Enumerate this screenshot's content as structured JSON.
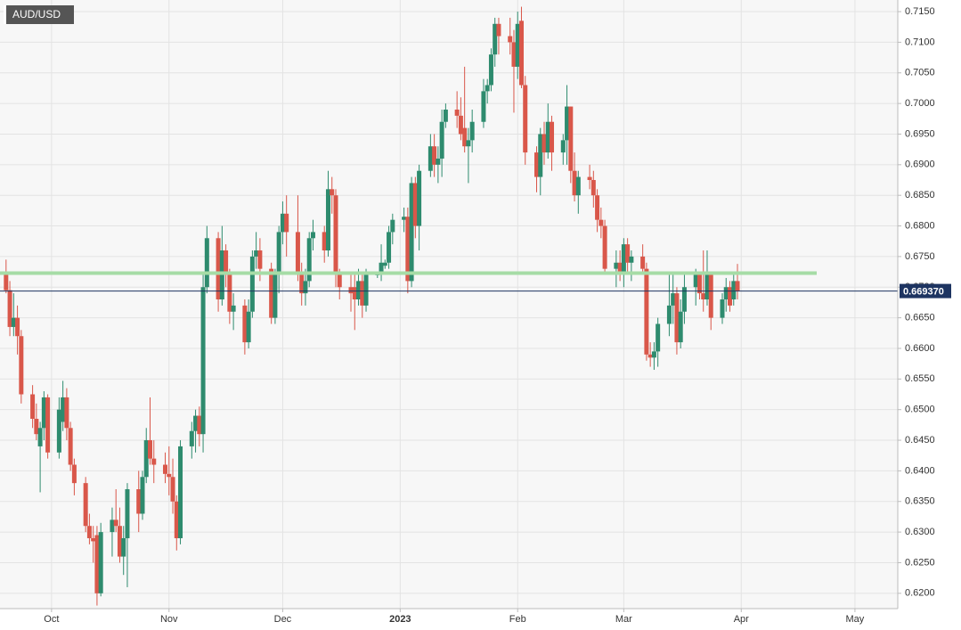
{
  "chart_data": {
    "type": "candlestick",
    "title": "AUD/USD",
    "up_color": "#2e8b6e",
    "down_color": "#d9574a",
    "grid": true,
    "ylim": [
      0.6175,
      0.7169
    ],
    "yticks": [
      {
        "value": 0.62,
        "label": "0.6200"
      },
      {
        "value": 0.625,
        "label": "0.6250"
      },
      {
        "value": 0.63,
        "label": "0.6300"
      },
      {
        "value": 0.635,
        "label": "0.6350"
      },
      {
        "value": 0.64,
        "label": "0.6400"
      },
      {
        "value": 0.645,
        "label": "0.6450"
      },
      {
        "value": 0.65,
        "label": "0.6500"
      },
      {
        "value": 0.655,
        "label": "0.6550"
      },
      {
        "value": 0.66,
        "label": "0.6600"
      },
      {
        "value": 0.665,
        "label": "0.6650"
      },
      {
        "value": 0.67,
        "label": "0.6700"
      },
      {
        "value": 0.675,
        "label": "0.6750"
      },
      {
        "value": 0.68,
        "label": "0.6800"
      },
      {
        "value": 0.685,
        "label": "0.6850"
      },
      {
        "value": 0.69,
        "label": "0.6900"
      },
      {
        "value": 0.695,
        "label": "0.6950"
      },
      {
        "value": 0.7,
        "label": "0.7000"
      },
      {
        "value": 0.705,
        "label": "0.7050"
      },
      {
        "value": 0.71,
        "label": "0.7100"
      },
      {
        "value": 0.715,
        "label": "0.7150"
      }
    ],
    "xlim": [
      -13.6,
      223.3
    ],
    "xticks": [
      {
        "value": 0,
        "label": "Oct"
      },
      {
        "value": 31,
        "label": "Nov"
      },
      {
        "value": 61,
        "label": "Dec"
      },
      {
        "value": 92,
        "label": "2023"
      },
      {
        "value": 123,
        "label": "Feb"
      },
      {
        "value": 151,
        "label": "Mar"
      },
      {
        "value": 182,
        "label": "Apr"
      },
      {
        "value": 212,
        "label": "May"
      }
    ],
    "hlines": [
      {
        "value": 0.6723,
        "color": "#a6dca6"
      }
    ],
    "current_price": {
      "value": 0.66937,
      "label": "0.669370",
      "color": "#1d3461"
    },
    "x": [
      -12,
      -11,
      -10,
      -9,
      -8,
      -5,
      -4,
      -3,
      -2,
      -1,
      2,
      3,
      4,
      5,
      6,
      9,
      10,
      11,
      12,
      13,
      16,
      17,
      18,
      19,
      20,
      23,
      24,
      25,
      26,
      27,
      30,
      31,
      32,
      33,
      34,
      37,
      38,
      39,
      40,
      41,
      44,
      45,
      46,
      47,
      48,
      51,
      52,
      53,
      54,
      55,
      58,
      59,
      60,
      61,
      62,
      65,
      66,
      67,
      68,
      69,
      72,
      73,
      74,
      75,
      76,
      79,
      80,
      81,
      82,
      83,
      86,
      87,
      88,
      89,
      90,
      93,
      94,
      95,
      96,
      97,
      100,
      101,
      102,
      103,
      104,
      107,
      108,
      109,
      110,
      111,
      114,
      115,
      116,
      117,
      118,
      121,
      122,
      123,
      124,
      125,
      128,
      129,
      130,
      131,
      132,
      135,
      136,
      137,
      138,
      139,
      142,
      143,
      144,
      145,
      146,
      149,
      150,
      151,
      152,
      153,
      156,
      157,
      158,
      159,
      160,
      163,
      164,
      165,
      166,
      167,
      170,
      171,
      172,
      173,
      174,
      177,
      178,
      179,
      180,
      181
    ],
    "ohlc": [
      [
        0.672,
        0.6745,
        0.669,
        0.6695
      ],
      [
        0.6695,
        0.671,
        0.662,
        0.6635
      ],
      [
        0.6635,
        0.669,
        0.662,
        0.665
      ],
      [
        0.665,
        0.667,
        0.659,
        0.662
      ],
      [
        0.662,
        0.663,
        0.651,
        0.6525
      ],
      [
        0.6525,
        0.654,
        0.647,
        0.6485
      ],
      [
        0.6485,
        0.651,
        0.645,
        0.646
      ],
      [
        0.644,
        0.648,
        0.6365,
        0.647
      ],
      [
        0.647,
        0.653,
        0.645,
        0.652
      ],
      [
        0.652,
        0.6525,
        0.642,
        0.643
      ],
      [
        0.643,
        0.652,
        0.642,
        0.65
      ],
      [
        0.648,
        0.6547,
        0.6465,
        0.652
      ],
      [
        0.652,
        0.6535,
        0.645,
        0.647
      ],
      [
        0.647,
        0.648,
        0.64,
        0.641
      ],
      [
        0.641,
        0.642,
        0.636,
        0.638
      ],
      [
        0.638,
        0.639,
        0.63,
        0.631
      ],
      [
        0.631,
        0.633,
        0.628,
        0.629
      ],
      [
        0.629,
        0.631,
        0.625,
        0.6285
      ],
      [
        0.6295,
        0.631,
        0.618,
        0.62
      ],
      [
        0.62,
        0.6315,
        0.6195,
        0.63
      ],
      [
        0.63,
        0.634,
        0.626,
        0.632
      ],
      [
        0.632,
        0.637,
        0.63,
        0.631
      ],
      [
        0.631,
        0.634,
        0.625,
        0.626
      ],
      [
        0.626,
        0.631,
        0.623,
        0.629
      ],
      [
        0.629,
        0.638,
        0.621,
        0.637
      ],
      [
        0.637,
        0.64,
        0.63,
        0.633
      ],
      [
        0.633,
        0.64,
        0.632,
        0.639
      ],
      [
        0.639,
        0.647,
        0.638,
        0.645
      ],
      [
        0.645,
        0.652,
        0.641,
        0.642
      ],
      [
        0.642,
        0.645,
        0.638,
        0.641
      ],
      [
        0.641,
        0.643,
        0.638,
        0.6395
      ],
      [
        0.6395,
        0.644,
        0.636,
        0.639
      ],
      [
        0.639,
        0.642,
        0.633,
        0.635
      ],
      [
        0.635,
        0.636,
        0.627,
        0.629
      ],
      [
        0.629,
        0.645,
        0.628,
        0.644
      ],
      [
        0.644,
        0.648,
        0.642,
        0.6465
      ],
      [
        0.6465,
        0.65,
        0.643,
        0.649
      ],
      [
        0.649,
        0.6505,
        0.644,
        0.646
      ],
      [
        0.646,
        0.672,
        0.643,
        0.67
      ],
      [
        0.67,
        0.68,
        0.669,
        0.678
      ],
      [
        0.678,
        0.679,
        0.666,
        0.668
      ],
      [
        0.668,
        0.68,
        0.667,
        0.676
      ],
      [
        0.676,
        0.677,
        0.67,
        0.672
      ],
      [
        0.672,
        0.673,
        0.664,
        0.666
      ],
      [
        0.666,
        0.669,
        0.663,
        0.667
      ],
      [
        0.667,
        0.668,
        0.659,
        0.661
      ],
      [
        0.661,
        0.668,
        0.66,
        0.666
      ],
      [
        0.666,
        0.676,
        0.665,
        0.675
      ],
      [
        0.675,
        0.679,
        0.673,
        0.676
      ],
      [
        0.676,
        0.678,
        0.671,
        0.673
      ],
      [
        0.673,
        0.674,
        0.664,
        0.665
      ],
      [
        0.665,
        0.673,
        0.664,
        0.672
      ],
      [
        0.672,
        0.68,
        0.669,
        0.679
      ],
      [
        0.679,
        0.684,
        0.677,
        0.682
      ],
      [
        0.682,
        0.685,
        0.675,
        0.679
      ],
      [
        0.679,
        0.685,
        0.671,
        0.672
      ],
      [
        0.672,
        0.674,
        0.667,
        0.669
      ],
      [
        0.669,
        0.673,
        0.667,
        0.671
      ],
      [
        0.671,
        0.679,
        0.67,
        0.678
      ],
      [
        0.678,
        0.681,
        0.676,
        0.679
      ],
      [
        0.679,
        0.68,
        0.674,
        0.676
      ],
      [
        0.676,
        0.689,
        0.675,
        0.686
      ],
      [
        0.686,
        0.688,
        0.682,
        0.685
      ],
      [
        0.685,
        0.686,
        0.67,
        0.672
      ],
      [
        0.672,
        0.673,
        0.668,
        0.67
      ],
      [
        0.67,
        0.672,
        0.666,
        0.669
      ],
      [
        0.67,
        0.672,
        0.663,
        0.668
      ],
      [
        0.668,
        0.673,
        0.667,
        0.671
      ],
      [
        0.671,
        0.672,
        0.665,
        0.667
      ],
      [
        0.667,
        0.673,
        0.666,
        0.672
      ],
      [
        0.672,
        0.6725,
        0.6715,
        0.6721
      ],
      [
        0.6721,
        0.677,
        0.671,
        0.674
      ],
      [
        0.6735,
        0.6745,
        0.673,
        0.674
      ],
      [
        0.674,
        0.68,
        0.673,
        0.679
      ],
      [
        0.679,
        0.682,
        0.677,
        0.681
      ],
      [
        0.681,
        0.683,
        0.679,
        0.6815
      ],
      [
        0.6815,
        0.683,
        0.669,
        0.671
      ],
      [
        0.671,
        0.688,
        0.67,
        0.687
      ],
      [
        0.687,
        0.688,
        0.678,
        0.68
      ],
      [
        0.68,
        0.69,
        0.676,
        0.689
      ],
      [
        0.689,
        0.695,
        0.688,
        0.693
      ],
      [
        0.693,
        0.695,
        0.688,
        0.69
      ],
      [
        0.69,
        0.693,
        0.687,
        0.691
      ],
      [
        0.691,
        0.699,
        0.688,
        0.697
      ],
      [
        0.697,
        0.7,
        0.696,
        0.699
      ],
      [
        0.699,
        0.702,
        0.696,
        0.698
      ],
      [
        0.698,
        0.701,
        0.694,
        0.695
      ],
      [
        0.696,
        0.706,
        0.692,
        0.693
      ],
      [
        0.693,
        0.696,
        0.687,
        0.694
      ],
      [
        0.694,
        0.699,
        0.692,
        0.697
      ],
      [
        0.697,
        0.704,
        0.696,
        0.702
      ],
      [
        0.702,
        0.704,
        0.7,
        0.703
      ],
      [
        0.703,
        0.709,
        0.702,
        0.708
      ],
      [
        0.708,
        0.714,
        0.706,
        0.713
      ],
      [
        0.713,
        0.714,
        0.708,
        0.711
      ],
      [
        0.711,
        0.714,
        0.708,
        0.71
      ],
      [
        0.71,
        0.712,
        0.6985,
        0.706
      ],
      [
        0.706,
        0.715,
        0.704,
        0.713
      ],
      [
        0.7135,
        0.7158,
        0.7025,
        0.703
      ],
      [
        0.703,
        0.7045,
        0.69,
        0.692
      ],
      [
        0.692,
        0.693,
        0.6855,
        0.688
      ],
      [
        0.688,
        0.696,
        0.685,
        0.695
      ],
      [
        0.695,
        0.697,
        0.69,
        0.692
      ],
      [
        0.692,
        0.7,
        0.691,
        0.697
      ],
      [
        0.697,
        0.698,
        0.689,
        0.692
      ],
      [
        0.692,
        0.695,
        0.69,
        0.694
      ],
      [
        0.694,
        0.703,
        0.69,
        0.6995
      ],
      [
        0.6995,
        0.6995,
        0.687,
        0.689
      ],
      [
        0.689,
        0.692,
        0.684,
        0.685
      ],
      [
        0.685,
        0.689,
        0.682,
        0.688
      ],
      [
        0.688,
        0.69,
        0.686,
        0.6875
      ],
      [
        0.6875,
        0.689,
        0.683,
        0.685
      ],
      [
        0.685,
        0.686,
        0.679,
        0.681
      ],
      [
        0.681,
        0.683,
        0.678,
        0.68
      ],
      [
        0.68,
        0.681,
        0.672,
        0.673
      ],
      [
        0.673,
        0.676,
        0.67,
        0.674
      ],
      [
        0.674,
        0.676,
        0.671,
        0.6725
      ],
      [
        0.6725,
        0.678,
        0.67,
        0.677
      ],
      [
        0.677,
        0.678,
        0.672,
        0.674
      ],
      [
        0.674,
        0.676,
        0.671,
        0.675
      ],
      [
        0.675,
        0.677,
        0.672,
        0.673
      ],
      [
        0.673,
        0.674,
        0.658,
        0.659
      ],
      [
        0.659,
        0.661,
        0.657,
        0.6585
      ],
      [
        0.6585,
        0.661,
        0.6565,
        0.6595
      ],
      [
        0.6595,
        0.665,
        0.657,
        0.664
      ],
      [
        0.664,
        0.672,
        0.662,
        0.667
      ],
      [
        0.667,
        0.672,
        0.664,
        0.669
      ],
      [
        0.669,
        0.67,
        0.659,
        0.661
      ],
      [
        0.661,
        0.668,
        0.66,
        0.666
      ],
      [
        0.666,
        0.672,
        0.664,
        0.67
      ],
      [
        0.67,
        0.673,
        0.667,
        0.672
      ],
      [
        0.672,
        0.6725,
        0.668,
        0.669
      ],
      [
        0.669,
        0.676,
        0.666,
        0.668
      ],
      [
        0.668,
        0.676,
        0.667,
        0.672
      ],
      [
        0.672,
        0.6725,
        0.663,
        0.665
      ],
      [
        0.665,
        0.669,
        0.664,
        0.668
      ],
      [
        0.668,
        0.6715,
        0.666,
        0.67
      ],
      [
        0.67,
        0.671,
        0.666,
        0.667
      ],
      [
        0.668,
        0.672,
        0.667,
        0.671
      ],
      [
        0.671,
        0.6738,
        0.668,
        0.6694
      ]
    ]
  }
}
